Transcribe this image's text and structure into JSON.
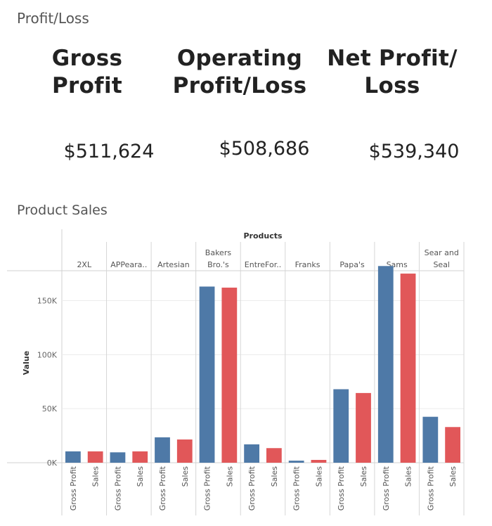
{
  "kpi_section": {
    "title": "Profit/Loss",
    "cards": [
      {
        "title_line1": "Gross",
        "title_line2": "Profit",
        "value": "$511,624"
      },
      {
        "title_line1": "Operating",
        "title_line2": "Profit/Loss",
        "value": "$508,686"
      },
      {
        "title_line1": "Net Profit/",
        "title_line2": "Loss",
        "value": "$539,340"
      }
    ]
  },
  "chart_section": {
    "title": "Product Sales"
  },
  "colors": {
    "gross_profit": "#4e79a7",
    "sales": "#e15759"
  },
  "chart_data": {
    "type": "bar",
    "column_header": "Products",
    "ylabel": "Value",
    "ylim": [
      0,
      190000
    ],
    "yticks": [
      0,
      50000,
      100000,
      150000
    ],
    "ytick_labels": [
      "0K",
      "50K",
      "100K",
      "150K"
    ],
    "grid": true,
    "measure_labels": [
      "Gross Profit",
      "Sales"
    ],
    "categories": [
      {
        "label": [
          "2XL"
        ]
      },
      {
        "label": [
          "APPeara.."
        ]
      },
      {
        "label": [
          "Artesian"
        ]
      },
      {
        "label": [
          "Bakers",
          "Bro.'s"
        ]
      },
      {
        "label": [
          "EntreFor.."
        ]
      },
      {
        "label": [
          "Franks"
        ]
      },
      {
        "label": [
          "Papa's"
        ]
      },
      {
        "label": [
          "Sams"
        ]
      },
      {
        "label": [
          "Sear and",
          "Seal"
        ]
      }
    ],
    "series": [
      {
        "name": "Gross Profit",
        "values": [
          10500,
          9600,
          23500,
          163000,
          17000,
          1900,
          68000,
          182000,
          42500
        ]
      },
      {
        "name": "Sales",
        "values": [
          10500,
          10500,
          21500,
          162000,
          13500,
          2600,
          64500,
          175000,
          33000
        ]
      }
    ]
  }
}
